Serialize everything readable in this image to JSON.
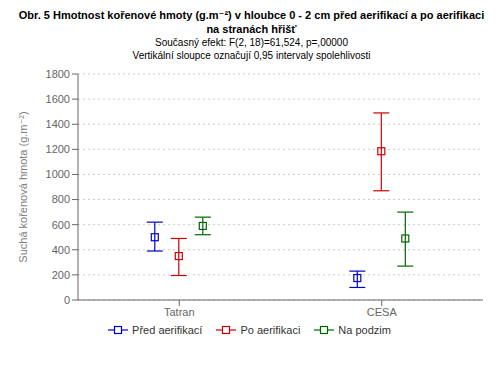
{
  "chart_data": {
    "type": "scatter",
    "title": [
      "Obr. 5 Hmotnost kořenové hmoty (g.m⁻²) v hloubce 0 - 2 cm před aerifikací a po aerifikaci",
      "na stranách hřišť"
    ],
    "subtitle": [
      "Současný efekt: F(2, 18)=61,524, p=,00000",
      "Vertikální sloupce označují 0,95 intervaly spolehlivosti"
    ],
    "ylabel": "Suchá kořenová hmota (g.m⁻²)",
    "categories": [
      "Tatran",
      "CESA"
    ],
    "series": [
      {
        "name": "Před aerifikací",
        "color": "#0000cc",
        "marker": "square",
        "values": [
          500,
          175
        ],
        "ci_low": [
          390,
          100
        ],
        "ci_high": [
          620,
          230
        ]
      },
      {
        "name": "Po aerifikaci",
        "color": "#cc0000",
        "marker": "square",
        "values": [
          350,
          1185
        ],
        "ci_low": [
          195,
          870
        ],
        "ci_high": [
          490,
          1490
        ]
      },
      {
        "name": "Na podzim",
        "color": "#006600",
        "marker": "square",
        "values": [
          590,
          490
        ],
        "ci_low": [
          520,
          270
        ],
        "ci_high": [
          660,
          700
        ]
      }
    ],
    "ylim": [
      0,
      1800
    ],
    "yticks": [
      0,
      200,
      400,
      600,
      800,
      1000,
      1200,
      1400,
      1600,
      1800
    ],
    "grid": true
  }
}
